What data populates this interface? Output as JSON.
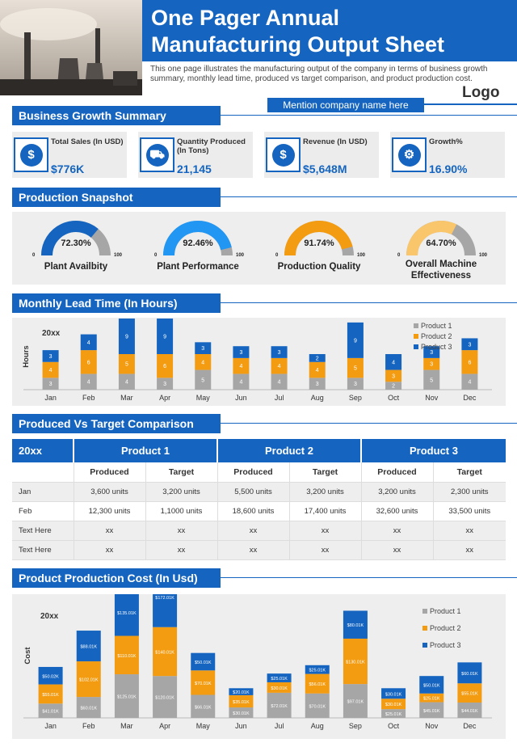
{
  "header": {
    "title_line1": "One Pager Annual",
    "title_line2": "Manufacturing Output Sheet",
    "intro": "This one page illustrates the manufacturing output of the company in terms of business growth summary, monthly lead time, produced vs target comparison, and product production cost.",
    "company_placeholder": "Mention company name here",
    "logo": "Logo"
  },
  "colors": {
    "brand": "#1565c0",
    "orange": "#f39c12",
    "gray": "#a6a6a6",
    "panel": "#eeeeee"
  },
  "business_growth": {
    "title": "Business Growth Summary",
    "kpis": [
      {
        "label": "Total Sales (In USD)",
        "value": "$776K",
        "icon": "money-bag-icon",
        "glyph": "$"
      },
      {
        "label": "Quantity Produced (In Tons)",
        "value": "21,145",
        "icon": "cart-icon",
        "glyph": "⛟"
      },
      {
        "label": "Revenue (In USD)",
        "value": "$5,648M",
        "icon": "dollar-coin-icon",
        "glyph": "$"
      },
      {
        "label": "Growth%",
        "value": "16.90%",
        "icon": "growth-gear-icon",
        "glyph": "⚙"
      }
    ]
  },
  "production_snapshot": {
    "title": "Production Snapshot",
    "min_label": "0",
    "max_label": "100",
    "gauges": [
      {
        "label": "Plant Availbity",
        "value": 72.3,
        "display": "72.30%",
        "color": "#1565c0"
      },
      {
        "label": "Plant Performance",
        "value": 92.46,
        "display": "92.46%",
        "color": "#2196f3"
      },
      {
        "label": "Production Quality",
        "value": 91.74,
        "display": "91.74%",
        "color": "#f39c12"
      },
      {
        "label": "Overall Machine Effectiveness",
        "value": 64.7,
        "display": "64.70%",
        "color": "#f9c66b"
      }
    ]
  },
  "lead_time": {
    "title": "Monthly Lead Time (In Hours)"
  },
  "comparison": {
    "title": "Produced Vs Target Comparison",
    "year": "20xx",
    "products": [
      "Product 1",
      "Product 2",
      "Product 3"
    ],
    "sub_headers": [
      "Produced",
      "Target"
    ],
    "rows": [
      {
        "label": "Jan",
        "cells": [
          "3,600 units",
          "3,200 units",
          "5,500 units",
          "3,200 units",
          "3,200 units",
          "2,300 units"
        ]
      },
      {
        "label": "Feb",
        "cells": [
          "12,300 units",
          "1,1000 units",
          "18,600 units",
          "17,400 units",
          "32,600 units",
          "33,500 units"
        ]
      },
      {
        "label": "Text Here",
        "cells": [
          "xx",
          "xx",
          "xx",
          "xx",
          "xx",
          "xx"
        ]
      },
      {
        "label": "Text Here",
        "cells": [
          "xx",
          "xx",
          "xx",
          "xx",
          "xx",
          "xx"
        ]
      }
    ]
  },
  "cost": {
    "title": "Product Production Cost (In Usd)"
  },
  "chart_data": [
    {
      "type": "bar",
      "stacked": true,
      "annotation": "20xx",
      "ylabel": "Hours",
      "categories": [
        "Jan",
        "Feb",
        "Mar",
        "Apr",
        "May",
        "Jun",
        "Jul",
        "Aug",
        "Sep",
        "Oct",
        "Nov",
        "Dec"
      ],
      "series": [
        {
          "name": "Product 1",
          "color": "#a6a6a6",
          "values": [
            3,
            4,
            4,
            3,
            5,
            4,
            4,
            3,
            3,
            2,
            5,
            4
          ]
        },
        {
          "name": "Product 2",
          "color": "#f39c12",
          "values": [
            4,
            6,
            5,
            6,
            4,
            4,
            4,
            4,
            5,
            3,
            3,
            6
          ]
        },
        {
          "name": "Product 3",
          "color": "#1565c0",
          "values": [
            3,
            4,
            9,
            9,
            3,
            3,
            3,
            2,
            9,
            4,
            3,
            3
          ]
        }
      ],
      "ylim": [
        0,
        18
      ],
      "legend": "top-right",
      "grid": false
    },
    {
      "type": "bar",
      "stacked": true,
      "annotation": "20xx",
      "ylabel": "Cost",
      "categories": [
        "Jan",
        "Feb",
        "Mar",
        "Apr",
        "May",
        "Jun",
        "Jul",
        "Aug",
        "Sep",
        "Oct",
        "Nov",
        "Dec"
      ],
      "series": [
        {
          "name": "Product 1",
          "color": "#a6a6a6",
          "values": [
            41,
            60,
            125,
            120,
            66,
            30,
            72,
            70,
            97,
            25,
            45,
            44
          ],
          "labels": [
            "$41.01K",
            "$60.01K",
            "$125.01K",
            "$120.01K",
            "$66.01K",
            "$30.01K",
            "$72.01K",
            "$70.01K",
            "$97.01K",
            "$25.01K",
            "$45.01K",
            "$44.01K"
          ]
        },
        {
          "name": "Product 2",
          "color": "#f39c12",
          "values": [
            55,
            102,
            110,
            140,
            70,
            35,
            30,
            56,
            130,
            30,
            25,
            55
          ],
          "labels": [
            "$55.01K",
            "$102.01K",
            "$110.01K",
            "$140.01K",
            "$70.01K",
            "$35.01K",
            "$30.01K",
            "$56.01K",
            "$130.01K",
            "$30.01K",
            "$25.01K",
            "$55.01K"
          ]
        },
        {
          "name": "Product 3",
          "color": "#1565c0",
          "values": [
            50,
            88,
            135,
            172,
            50,
            20,
            25,
            25,
            80,
            30,
            50,
            60
          ],
          "labels": [
            "$50.02K",
            "$88.01K",
            "$135.01K",
            "$172.01K",
            "$50.01K",
            "$20.01K",
            "$25.01K",
            "$25.01K",
            "$80.01K",
            "$30.01K",
            "$50.01K",
            "$60.01K"
          ]
        }
      ],
      "ylim": [
        0,
        440
      ],
      "legend": "right",
      "grid": false
    }
  ]
}
